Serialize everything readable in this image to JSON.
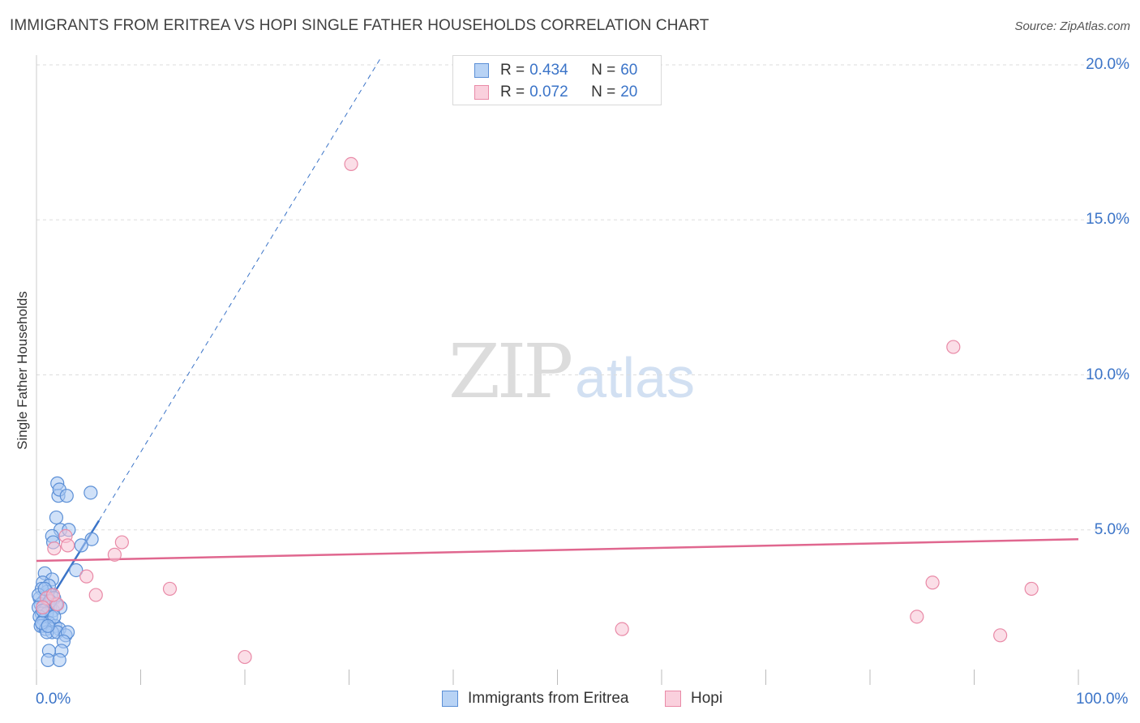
{
  "header": {
    "title": "IMMIGRANTS FROM ERITREA VS HOPI SINGLE FATHER HOUSEHOLDS CORRELATION CHART",
    "source": "Source: ZipAtlas.com"
  },
  "watermark": {
    "zip": "ZIP",
    "atlas": "atlas"
  },
  "colors": {
    "eritrea_fill": "#a9c8f2",
    "eritrea_stroke": "#5b8fd6",
    "eritrea_line": "#3b74c8",
    "hopi_fill": "#f7c3d3",
    "hopi_stroke": "#e98aa7",
    "hopi_line": "#e0678f",
    "tick_text": "#3b74c8",
    "grid": "#dddddd"
  },
  "legend": {
    "rows": [
      {
        "r_label": "R =",
        "r_value": "0.434",
        "n_label": "N =",
        "n_value": "60"
      },
      {
        "r_label": "R =",
        "r_value": "0.072",
        "n_label": "N =",
        "n_value": "20"
      }
    ]
  },
  "bottom_legend": {
    "series1": "Immigrants from Eritrea",
    "series2": "Hopi"
  },
  "chart_data": {
    "type": "scatter",
    "title": "IMMIGRANTS FROM ERITREA VS HOPI SINGLE FATHER HOUSEHOLDS CORRELATION CHART",
    "xlabel": "",
    "ylabel": "Single Father Households",
    "xlim": [
      0,
      100
    ],
    "ylim": [
      0,
      20
    ],
    "x_tick_labels": [
      "0.0%",
      "100.0%"
    ],
    "y_ticks": [
      5,
      10,
      15,
      20
    ],
    "y_tick_labels": [
      "5.0%",
      "10.0%",
      "15.0%",
      "20.0%"
    ],
    "grid": true,
    "legend_position": "top-center",
    "series": [
      {
        "name": "Immigrants from Eritrea",
        "r": 0.434,
        "n": 60,
        "trend": {
          "x": [
            0.1,
            6.0
          ],
          "y": [
            2.1,
            5.3
          ],
          "extended_x": [
            6.0,
            33.0
          ],
          "extended_y": [
            5.3,
            20.2
          ]
        },
        "points": [
          [
            2.0,
            6.5
          ],
          [
            2.1,
            6.1
          ],
          [
            2.2,
            6.3
          ],
          [
            2.9,
            6.1
          ],
          [
            5.2,
            6.2
          ],
          [
            1.9,
            5.4
          ],
          [
            2.3,
            5.0
          ],
          [
            1.5,
            4.8
          ],
          [
            3.1,
            5.0
          ],
          [
            5.3,
            4.7
          ],
          [
            4.3,
            4.5
          ],
          [
            1.6,
            4.6
          ],
          [
            3.8,
            3.7
          ],
          [
            0.8,
            3.6
          ],
          [
            1.5,
            3.4
          ],
          [
            0.6,
            3.3
          ],
          [
            1.2,
            3.2
          ],
          [
            1.0,
            3.0
          ],
          [
            0.5,
            3.1
          ],
          [
            1.4,
            2.9
          ],
          [
            0.9,
            2.8
          ],
          [
            0.3,
            2.8
          ],
          [
            1.7,
            2.8
          ],
          [
            0.7,
            2.7
          ],
          [
            1.1,
            2.6
          ],
          [
            0.4,
            2.6
          ],
          [
            1.3,
            2.5
          ],
          [
            0.2,
            2.5
          ],
          [
            0.8,
            2.4
          ],
          [
            1.6,
            2.4
          ],
          [
            2.3,
            2.5
          ],
          [
            0.5,
            2.3
          ],
          [
            1.0,
            2.3
          ],
          [
            1.4,
            2.2
          ],
          [
            0.3,
            2.2
          ],
          [
            0.7,
            2.1
          ],
          [
            1.2,
            2.0
          ],
          [
            0.6,
            1.9
          ],
          [
            1.8,
            1.9
          ],
          [
            2.2,
            1.8
          ],
          [
            0.4,
            1.9
          ],
          [
            0.9,
            1.8
          ],
          [
            1.5,
            1.7
          ],
          [
            1.0,
            1.7
          ],
          [
            2.0,
            1.7
          ],
          [
            2.8,
            1.6
          ],
          [
            3.0,
            1.7
          ],
          [
            2.6,
            1.4
          ],
          [
            2.4,
            1.1
          ],
          [
            1.2,
            1.1
          ],
          [
            1.1,
            0.8
          ],
          [
            2.2,
            0.8
          ],
          [
            0.5,
            2.0
          ],
          [
            1.3,
            2.7
          ],
          [
            0.2,
            2.9
          ],
          [
            0.8,
            3.1
          ],
          [
            1.9,
            2.6
          ],
          [
            0.6,
            2.4
          ],
          [
            1.7,
            2.2
          ],
          [
            1.1,
            1.9
          ]
        ]
      },
      {
        "name": "Hopi",
        "r": 0.072,
        "n": 20,
        "trend": {
          "x": [
            0.0,
            100.0
          ],
          "y": [
            4.0,
            4.7
          ]
        },
        "points": [
          [
            30.2,
            16.8
          ],
          [
            88.0,
            10.9
          ],
          [
            2.8,
            4.8
          ],
          [
            8.2,
            4.6
          ],
          [
            3.0,
            4.5
          ],
          [
            1.7,
            4.4
          ],
          [
            7.5,
            4.2
          ],
          [
            4.8,
            3.5
          ],
          [
            12.8,
            3.1
          ],
          [
            86.0,
            3.3
          ],
          [
            95.5,
            3.1
          ],
          [
            5.7,
            2.9
          ],
          [
            2.0,
            2.6
          ],
          [
            1.0,
            2.8
          ],
          [
            84.5,
            2.2
          ],
          [
            56.2,
            1.8
          ],
          [
            92.5,
            1.6
          ],
          [
            20.0,
            0.9
          ],
          [
            1.6,
            2.9
          ],
          [
            0.6,
            2.5
          ]
        ]
      }
    ]
  }
}
